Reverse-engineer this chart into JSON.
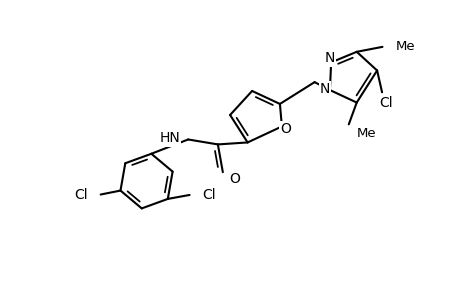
{
  "background_color": "#ffffff",
  "line_color": "#000000",
  "line_width": 1.5,
  "font_size": 10,
  "figure_width": 4.6,
  "figure_height": 3.0,
  "dpi": 100,
  "xlim": [
    0,
    4.6
  ],
  "ylim": [
    0,
    3.0
  ]
}
